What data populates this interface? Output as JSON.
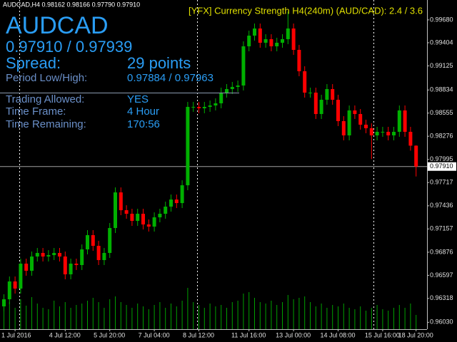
{
  "header": "AUDCAD,H4  0.98162 0.98166 0.97790 0.97910",
  "indicator_title": "[YFX] Currency Strength H4(240m) (AUD/CAD): 2.4 / 3.6",
  "panel": {
    "symbol": "AUDCAD",
    "quote": "0.97910 / 0.97939",
    "rows": [
      [
        "Spread:",
        "29 points"
      ],
      [
        "Period Low/High:",
        "0.97884 / 0.97963"
      ],
      [
        "Trading Allowed:",
        "YES"
      ],
      [
        "Time Frame:",
        "4 Hour"
      ],
      [
        "Time Remaining:",
        "170:56"
      ]
    ]
  },
  "chart_data": {
    "type": "candlestick",
    "categories": [
      null,
      null,
      "1 Jul 2016",
      null,
      null,
      null,
      null,
      null,
      null,
      null,
      null,
      "4 Jul 12:00",
      null,
      null,
      null,
      null,
      null,
      null,
      null,
      "5 Jul 20:00",
      null,
      null,
      null,
      null,
      null,
      null,
      null,
      "7 Jul 04:00",
      null,
      null,
      null,
      null,
      null,
      null,
      null,
      "8 Jul 12:00",
      null,
      null,
      null,
      null,
      null,
      null,
      null,
      null,
      "11 Jul 16:00",
      null,
      null,
      null,
      null,
      null,
      null,
      null,
      "13 Jul 00:00",
      null,
      null,
      null,
      null,
      null,
      null,
      null,
      "14 Jul 08:00",
      null,
      null,
      null,
      null,
      null,
      null,
      null,
      "15 Jul 16:00",
      null,
      null,
      null,
      null,
      null,
      "18 Jul 20:00"
    ],
    "open": [
      0.96222,
      0.96308,
      0.96523,
      0.96437,
      0.96738,
      0.96652,
      0.96824,
      0.96867,
      0.96824,
      0.96841,
      0.96867,
      0.96824,
      0.96609,
      0.96738,
      0.96721,
      0.9691,
      0.97082,
      0.96953,
      0.96781,
      0.96867,
      0.97168,
      0.97598,
      0.97383,
      0.9734,
      0.97254,
      0.9734,
      0.97211,
      0.97185,
      0.97297,
      0.9734,
      0.97426,
      0.97512,
      0.97469,
      0.97684,
      0.9863,
      0.9863,
      0.98613,
      0.9863,
      0.98647,
      0.98673,
      0.98802,
      0.98845,
      0.98871,
      0.98888,
      0.99361,
      0.9949,
      0.99576,
      0.99404,
      0.99447,
      0.99361,
      0.99404,
      0.99447,
      0.99576,
      0.99318,
      0.9906,
      0.98802,
      0.98802,
      0.98544,
      0.98716,
      0.98845,
      0.98716,
      0.98458,
      0.98286,
      0.98587,
      0.98544,
      0.98415,
      0.98372,
      0.98286,
      0.98329,
      0.98329,
      0.98286,
      0.98329,
      0.98587,
      0.98329,
      0.98162
    ],
    "high": [
      0.96368,
      0.96583,
      0.96583,
      0.96798,
      0.96798,
      0.96884,
      0.96927,
      0.96927,
      0.96901,
      0.96927,
      0.96927,
      0.96884,
      0.96798,
      0.96798,
      0.9697,
      0.97142,
      0.97142,
      0.97013,
      0.96927,
      0.97228,
      0.97658,
      0.97658,
      0.97443,
      0.974,
      0.974,
      0.974,
      0.97271,
      0.97357,
      0.974,
      0.97486,
      0.97572,
      0.97572,
      0.97744,
      0.9869,
      0.9869,
      0.9869,
      0.9869,
      0.98707,
      0.98733,
      0.98862,
      0.98905,
      0.98931,
      0.98948,
      0.99421,
      0.9955,
      0.99636,
      0.99636,
      0.99507,
      0.99507,
      0.99464,
      0.99507,
      0.9978,
      0.99636,
      0.99378,
      0.9912,
      0.98862,
      0.98862,
      0.98776,
      0.98905,
      0.98905,
      0.98776,
      0.98518,
      0.98647,
      0.98647,
      0.98604,
      0.98475,
      0.98432,
      0.98389,
      0.98389,
      0.98389,
      0.98389,
      0.98647,
      0.98647,
      0.98389,
      0.98166
    ],
    "low": [
      0.96162,
      0.96248,
      0.96377,
      0.96377,
      0.96592,
      0.96592,
      0.96764,
      0.96764,
      0.96764,
      0.96781,
      0.96764,
      0.96549,
      0.96549,
      0.96661,
      0.96661,
      0.9685,
      0.96893,
      0.96721,
      0.96721,
      0.96807,
      0.97108,
      0.97323,
      0.9728,
      0.97194,
      0.97194,
      0.97151,
      0.97125,
      0.97125,
      0.97237,
      0.9728,
      0.97366,
      0.97409,
      0.97409,
      0.97624,
      0.9857,
      0.98553,
      0.98553,
      0.9857,
      0.98587,
      0.98613,
      0.98742,
      0.98785,
      0.98811,
      0.98828,
      0.99301,
      0.9943,
      0.99344,
      0.99344,
      0.99301,
      0.99301,
      0.99344,
      0.99387,
      0.99258,
      0.99,
      0.98742,
      0.98742,
      0.98484,
      0.98484,
      0.98656,
      0.98656,
      0.98398,
      0.98226,
      0.98226,
      0.98484,
      0.98355,
      0.98312,
      0.98,
      0.98226,
      0.98269,
      0.98226,
      0.98226,
      0.98269,
      0.98269,
      0.98102,
      0.9779
    ],
    "close": [
      0.96308,
      0.96523,
      0.96437,
      0.96738,
      0.96652,
      0.96824,
      0.96867,
      0.96824,
      0.96841,
      0.96867,
      0.96824,
      0.96609,
      0.96738,
      0.96721,
      0.9691,
      0.97082,
      0.96953,
      0.96781,
      0.96867,
      0.97168,
      0.97598,
      0.97383,
      0.9734,
      0.97254,
      0.9734,
      0.97211,
      0.97185,
      0.97297,
      0.9734,
      0.97426,
      0.97512,
      0.97469,
      0.97684,
      0.9863,
      0.9863,
      0.98613,
      0.9863,
      0.98647,
      0.98673,
      0.98802,
      0.98845,
      0.98871,
      0.98888,
      0.99361,
      0.9949,
      0.99576,
      0.99404,
      0.99447,
      0.99361,
      0.99404,
      0.99447,
      0.99576,
      0.99318,
      0.9906,
      0.98802,
      0.98802,
      0.98544,
      0.98716,
      0.98845,
      0.98716,
      0.98458,
      0.98286,
      0.98587,
      0.98544,
      0.98415,
      0.98372,
      0.98286,
      0.98329,
      0.98329,
      0.98286,
      0.98329,
      0.98587,
      0.98329,
      0.98162,
      0.9791
    ],
    "volume": [
      35,
      38,
      30,
      42,
      33,
      45,
      36,
      30,
      28,
      40,
      32,
      38,
      30,
      34,
      36,
      40,
      44,
      38,
      30,
      42,
      46,
      38,
      34,
      30,
      36,
      32,
      28,
      34,
      38,
      30,
      36,
      32,
      40,
      58,
      38,
      34,
      30,
      36,
      32,
      34,
      30,
      38,
      40,
      50,
      52,
      44,
      38,
      36,
      40,
      34,
      38,
      48,
      42,
      44,
      46,
      38,
      32,
      36,
      30,
      34,
      32,
      36,
      30,
      28,
      32,
      26,
      30,
      34,
      28,
      26,
      30,
      34,
      30,
      36,
      20
    ],
    "volume_ylim": [
      0,
      100
    ],
    "bull_color": "#00b000",
    "bear_color": "#ff0000",
    "volume_color": "#00a000",
    "ylim": [
      0.95947,
      0.9992
    ],
    "yticks": [
      {
        "value": 0.9968,
        "label": "0.99680"
      },
      {
        "value": 0.99404,
        "label": "0.99404"
      },
      {
        "value": 0.99125,
        "label": "0.99125"
      },
      {
        "value": 0.98834,
        "label": "0.98834"
      },
      {
        "value": 0.98555,
        "label": "0.98555"
      },
      {
        "value": 0.98276,
        "label": "0.98276"
      },
      {
        "value": 0.97995,
        "label": "0.97995"
      },
      {
        "value": 0.97717,
        "label": "0.97717"
      },
      {
        "value": 0.97436,
        "label": "0.97436"
      },
      {
        "value": 0.97157,
        "label": "0.97157"
      },
      {
        "value": 0.96876,
        "label": "0.96876"
      },
      {
        "value": 0.96597,
        "label": "0.96597"
      },
      {
        "value": 0.96318,
        "label": "0.96318"
      },
      {
        "value": 0.9603,
        "label": "0.96030"
      }
    ],
    "current_price": {
      "value": 0.9791,
      "label": "0.97910"
    }
  }
}
